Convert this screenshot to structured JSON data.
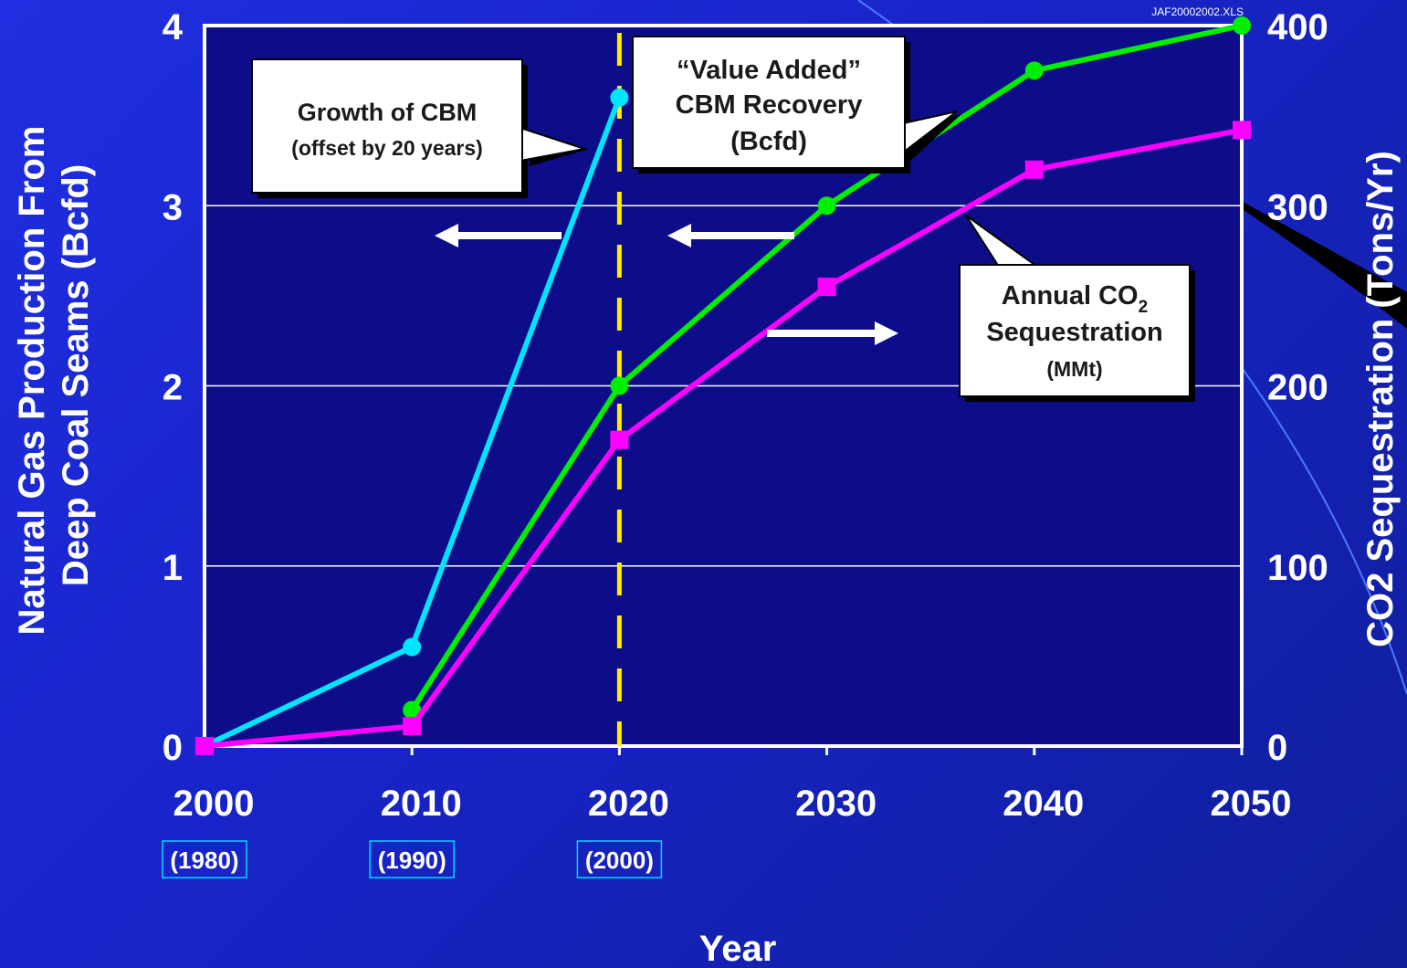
{
  "file_label": "JAF20002002.XLS",
  "callouts": {
    "growth": {
      "line1": "Growth of CBM",
      "line2": "(offset by 20 years)"
    },
    "value_added": {
      "line1": "“Value Added”",
      "line2": "CBM Recovery",
      "line3": "(Bcfd)"
    },
    "co2": {
      "line1_main": "Annual CO",
      "line1_sub": "2",
      "line2": "Sequestration",
      "line3": "(MMt)"
    }
  },
  "colors": {
    "background": "#1f2ee0",
    "plot_area": "#0d0d8a",
    "growth_cbm": "#00e5ff",
    "value_added_cbm": "#00ee00",
    "co2_sequestration": "#ff00ff",
    "divider": "#ffee00"
  },
  "chart_data": {
    "type": "line",
    "title": "",
    "xlabel": "Year",
    "ylabel": "Natural Gas Production From Deep Coal Seams (Bcfd)",
    "ylabel_lines": [
      "Natural Gas Production From",
      "Deep Coal Seams (Bcfd)"
    ],
    "y2label": "CO2 Sequestration (Tons/Yr)",
    "x_ticks": [
      "2000",
      "2010",
      "2020",
      "2030",
      "2040",
      "2050"
    ],
    "x_sub_ticks": [
      "(1980)",
      "(1990)",
      "(2000)"
    ],
    "xlim": [
      2000,
      2050
    ],
    "ylim": [
      0,
      4
    ],
    "y_ticks": [
      "0",
      "1",
      "2",
      "3",
      "4"
    ],
    "y2lim": [
      0,
      400
    ],
    "y2_ticks": [
      "0",
      "100",
      "200",
      "300",
      "400"
    ],
    "grid": true,
    "vertical_line_x": 2020,
    "series": [
      {
        "axis": "left",
        "marker": "circle",
        "x": [
          2000,
          2010,
          2020
        ],
        "y": [
          0,
          0.55,
          3.6
        ]
      },
      {
        "axis": "left",
        "marker": "circle",
        "x": [
          2010,
          2020,
          2030,
          2040,
          2050
        ],
        "y": [
          0.2,
          2.0,
          3.0,
          3.75,
          4.0
        ]
      },
      {
        "axis": "right",
        "marker": "square",
        "x": [
          2000,
          2010,
          2020,
          2030,
          2040,
          2050
        ],
        "y": [
          0,
          11,
          170,
          255,
          320,
          342
        ]
      }
    ]
  }
}
